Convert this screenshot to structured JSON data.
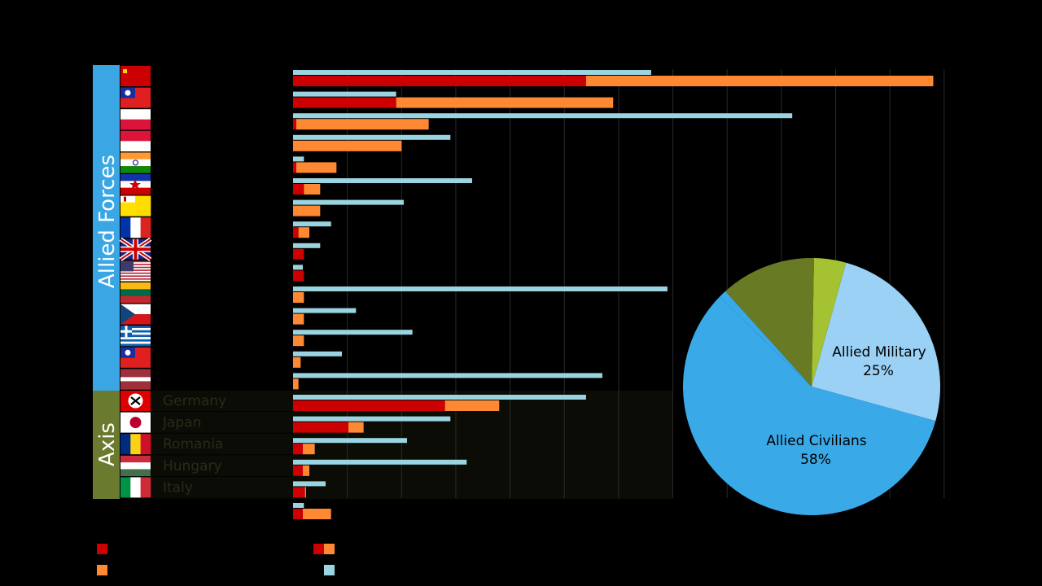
{
  "chart_data": [
    {
      "type": "bar",
      "title": "",
      "groups": [
        {
          "name": "Allied Forces",
          "color": "#3aa6e3",
          "rows": [
            0,
            14
          ]
        },
        {
          "name": "Axis",
          "color": "#6a7a2e",
          "rows": [
            15,
            19
          ]
        }
      ],
      "categories": [
        "",
        "",
        "",
        "",
        "",
        "",
        "",
        "",
        "",
        "",
        "",
        "",
        "",
        "",
        "",
        "Germany",
        "Japan",
        "Romania",
        "Hungary",
        "Italy",
        ""
      ],
      "flags": [
        "ussr",
        "roc",
        "poland",
        "indonesia",
        "india",
        "yugoslavia",
        "vatican",
        "france",
        "uk",
        "usa",
        "lithuania",
        "czech",
        "greece",
        "roc2",
        "latvia",
        "nazi",
        "japan",
        "romania",
        "hungary",
        "italy",
        ""
      ],
      "series": [
        {
          "color": "#cc0000",
          "values": [
            27,
            9.5,
            0.3,
            0,
            0.3,
            1,
            0,
            0.5,
            1,
            1,
            0,
            0,
            0,
            0,
            0,
            14,
            5.1,
            0.9,
            0.9,
            1.1,
            0.9
          ]
        },
        {
          "color": "#ff8833",
          "values": [
            32,
            20,
            12.2,
            10,
            3.7,
            1.5,
            2.5,
            1,
            0,
            0,
            1,
            1,
            1,
            0.7,
            0.5,
            5,
            1.4,
            1.1,
            0.6,
            0.1,
            2.6
          ]
        },
        {
          "color": "#9ad4e0",
          "values": [
            33,
            9.5,
            46,
            14.5,
            1,
            16.5,
            10.2,
            3.5,
            2.5,
            0.9,
            34.5,
            5.8,
            11,
            4.5,
            28.5,
            27,
            14.5,
            10.5,
            16,
            3,
            1
          ]
        }
      ],
      "xlim": [
        0,
        60
      ]
    },
    {
      "type": "pie",
      "labels": [
        "Allied Military",
        "Allied Civilians",
        "",
        "",
        ""
      ],
      "percent_labels": [
        "25%",
        "58%",
        "",
        "",
        ""
      ],
      "values": [
        25,
        58,
        1,
        12,
        4
      ],
      "colors": [
        "#9ad1f5",
        "#3aa9e8",
        "#3aa9e8",
        "#697a25",
        "#a4c232"
      ]
    }
  ],
  "legend": {
    "colors": [
      "#cc0000",
      "#ff8833",
      "#9ad4e0"
    ]
  }
}
